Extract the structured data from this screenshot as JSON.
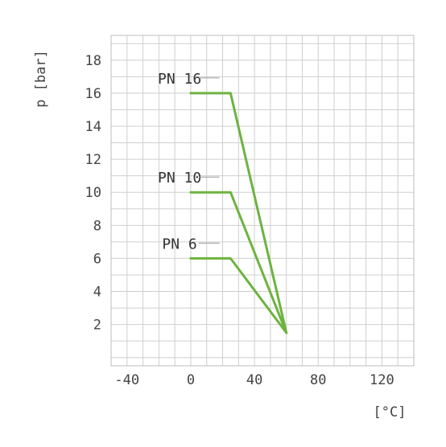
{
  "chart_data": {
    "type": "line",
    "title": "",
    "xlabel": "[°C]",
    "ylabel": "p [bar]",
    "xlim": [
      -50,
      140
    ],
    "ylim": [
      -0.5,
      19.5
    ],
    "grid": true,
    "x_ticks": [
      -40,
      0,
      40,
      80,
      120
    ],
    "x_tick_labels": [
      "-40",
      "0",
      "40",
      "80",
      "120"
    ],
    "y_ticks": [
      2,
      4,
      6,
      8,
      10,
      12,
      14,
      16,
      18
    ],
    "y_tick_labels": [
      "2",
      "4",
      "6",
      "8",
      "10",
      "12",
      "14",
      "16",
      "18"
    ],
    "series_color": "#6db33f",
    "series": [
      {
        "name": "PN 16",
        "x": [
          0,
          25,
          60
        ],
        "y": [
          16,
          16,
          1.5
        ]
      },
      {
        "name": "PN 10",
        "x": [
          0,
          25,
          60
        ],
        "y": [
          10,
          10,
          1.5
        ]
      },
      {
        "name": "PN 6",
        "x": [
          0,
          25,
          60
        ],
        "y": [
          6,
          6,
          1.5
        ]
      }
    ]
  }
}
